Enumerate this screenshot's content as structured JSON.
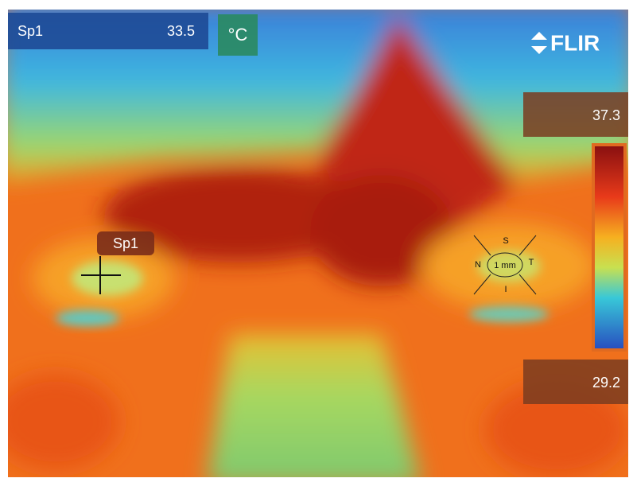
{
  "spot_readout": {
    "label": "Sp1",
    "value": 33.5
  },
  "unit": "°C",
  "brand": "FLIR",
  "scale": {
    "max": 37.3,
    "min": 29.2
  },
  "spot_marker": {
    "label": "Sp1"
  },
  "eye_grid": {
    "top": "S",
    "left": "N",
    "right": "T",
    "bottom": "I",
    "center": "1 mm"
  }
}
